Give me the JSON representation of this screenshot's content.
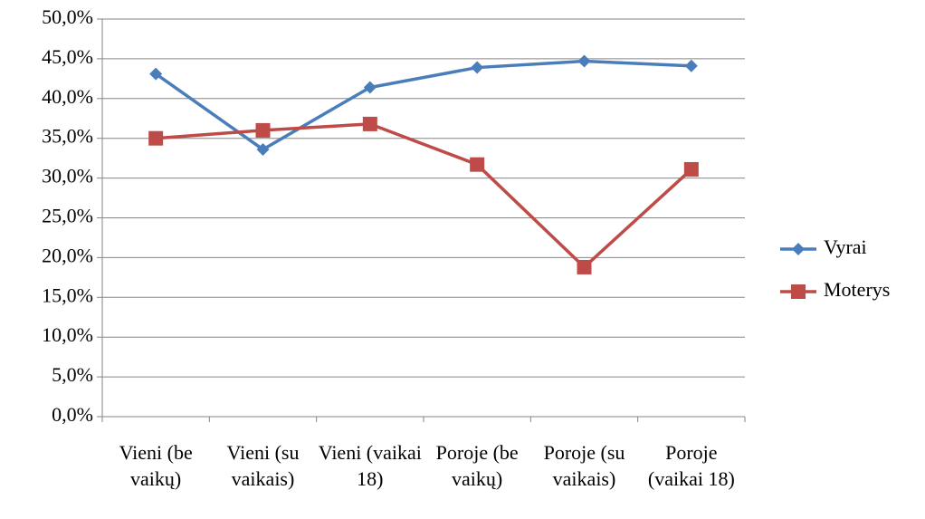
{
  "chart_data": {
    "type": "line",
    "categories": [
      "Vieni (be vaikų)",
      "Vieni (su vaikais)",
      "Vieni (vaikai 18)",
      "Poroje (be vaikų)",
      "Poroje (su vaikais)",
      "Poroje (vaikai 18)"
    ],
    "series": [
      {
        "name": "Vyrai",
        "color": "#4a7ebb",
        "marker": "diamond",
        "values": [
          43.1,
          33.6,
          41.4,
          43.9,
          44.7,
          44.1
        ]
      },
      {
        "name": "Moterys",
        "color": "#be4b48",
        "marker": "square",
        "values": [
          35.0,
          36.0,
          36.8,
          31.7,
          18.8,
          31.1
        ]
      }
    ],
    "ylim": [
      0,
      50
    ],
    "yticks": [
      {
        "value": 0,
        "label": "0,0%"
      },
      {
        "value": 5,
        "label": "5,0%"
      },
      {
        "value": 10,
        "label": "10,0%"
      },
      {
        "value": 15,
        "label": "15,0%"
      },
      {
        "value": 20,
        "label": "20,0%"
      },
      {
        "value": 25,
        "label": "25,0%"
      },
      {
        "value": 30,
        "label": "30,0%"
      },
      {
        "value": 35,
        "label": "35,0%"
      },
      {
        "value": 40,
        "label": "40,0%"
      },
      {
        "value": 45,
        "label": "45,0%"
      },
      {
        "value": 50,
        "label": "50,0%"
      }
    ],
    "grid": true,
    "legend": "right"
  }
}
